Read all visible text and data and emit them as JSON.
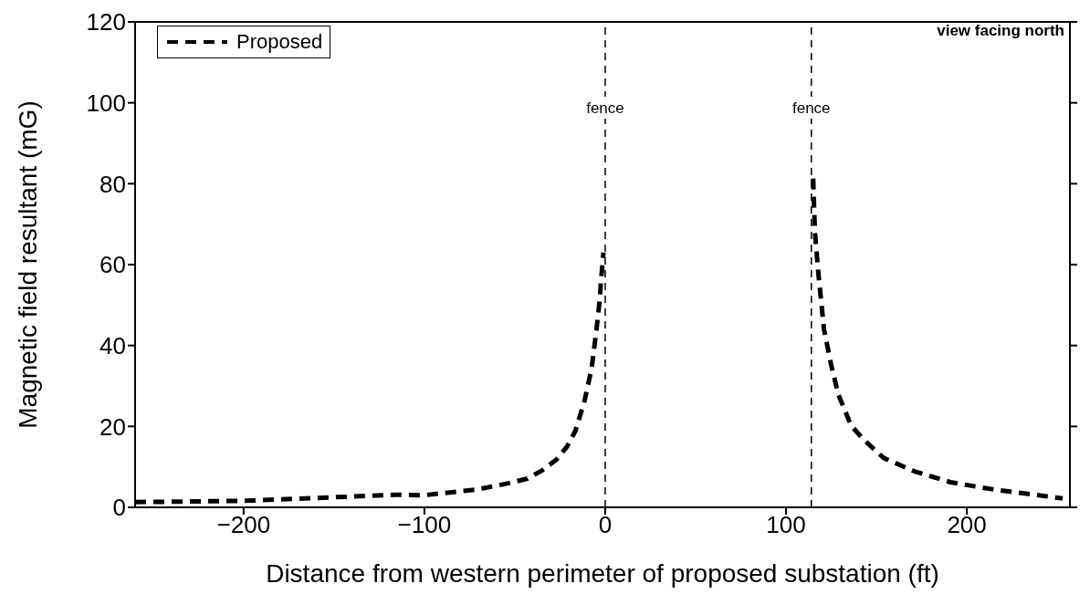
{
  "chart_data": {
    "type": "line",
    "xlabel": "Distance from western perimeter of proposed substation (ft)",
    "ylabel": "Magnetic field resultant (mG)",
    "annotations": [
      "view facing north"
    ],
    "xlim": [
      -260,
      257
    ],
    "xticks": [
      -200,
      -100,
      0,
      100,
      200
    ],
    "ylim": [
      0,
      120
    ],
    "yticks": [
      0,
      20,
      40,
      60,
      80,
      100,
      120
    ],
    "series": [
      {
        "name": "Proposed",
        "color": "#000000",
        "line_style": "dashed",
        "x": [
          -260,
          -200,
          -116,
          -100,
          -71,
          -53,
          -43,
          -35,
          -27,
          -21,
          -16.5,
          -11.5,
          -7.5,
          -5,
          -3,
          -2.5,
          -1,
          50,
          115,
          116,
          118,
          121,
          125,
          129,
          136,
          143,
          154,
          171,
          191,
          215,
          253
        ],
        "values": [
          1.3,
          1.6,
          3.1,
          3.0,
          4.4,
          6,
          7.1,
          9.1,
          11.8,
          15.1,
          18.9,
          26.2,
          34.4,
          43.3,
          51.4,
          55,
          63,
          null,
          81.3,
          67.8,
          57.3,
          44,
          35.1,
          27.8,
          20.2,
          16.7,
          12.2,
          8.9,
          6.2,
          4.4,
          2.2
        ]
      }
    ],
    "ref_lines": [
      {
        "axis": "x",
        "value": 0,
        "label": "fence",
        "line_style": "dashed",
        "color": "#000000"
      },
      {
        "axis": "x",
        "value": 114,
        "label": "fence",
        "line_style": "dashed",
        "color": "#000000"
      }
    ],
    "legend": "top left",
    "marker": "none"
  }
}
